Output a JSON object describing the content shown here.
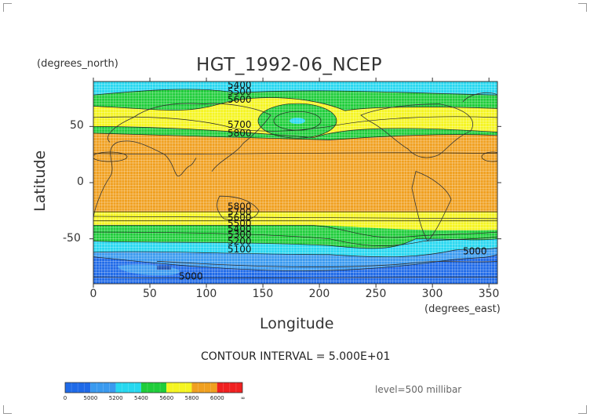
{
  "chart_data": {
    "type": "heatmap",
    "title": "HGT_1992-06_NCEP",
    "xlabel": "Longitude",
    "ylabel": "Latitude",
    "x_units": "(degrees_east)",
    "y_units": "(degrees_north)",
    "xlim": [
      0,
      357.5
    ],
    "ylim": [
      -90,
      90
    ],
    "x_ticks": [
      "0",
      "50",
      "100",
      "150",
      "200",
      "250",
      "300",
      "350"
    ],
    "y_ticks": [
      "50",
      "0",
      "-50"
    ],
    "contour_interval_text": "CONTOUR INTERVAL = 5.000E+01",
    "level_text": "level=500 millibar",
    "contour_labels": [
      "5400",
      "5500",
      "5600",
      "5700",
      "5800",
      "5800",
      "5700",
      "5600",
      "5500",
      "5400",
      "5300",
      "5200",
      "5100",
      "5000",
      "5000"
    ],
    "colorbar": {
      "labels": [
        "0",
        "5000",
        "5200",
        "5400",
        "5600",
        "5800",
        "6000",
        "∞"
      ],
      "colors": [
        "#1f6ae8",
        "#3a9aef",
        "#27d8f0",
        "#1fcd3a",
        "#f5f521",
        "#f0a020",
        "#f02020"
      ]
    },
    "bands": [
      {
        "name": "5000-5200",
        "color": "#3a9aef"
      },
      {
        "name": "below-5000",
        "color": "#1f6ae8"
      },
      {
        "name": "5200-5400",
        "color": "#27d8f0"
      },
      {
        "name": "5400-5600",
        "color": "#1fcd3a"
      },
      {
        "name": "5600-5800",
        "color": "#f5f521"
      },
      {
        "name": "5800-6000",
        "color": "#f0a020"
      }
    ]
  }
}
